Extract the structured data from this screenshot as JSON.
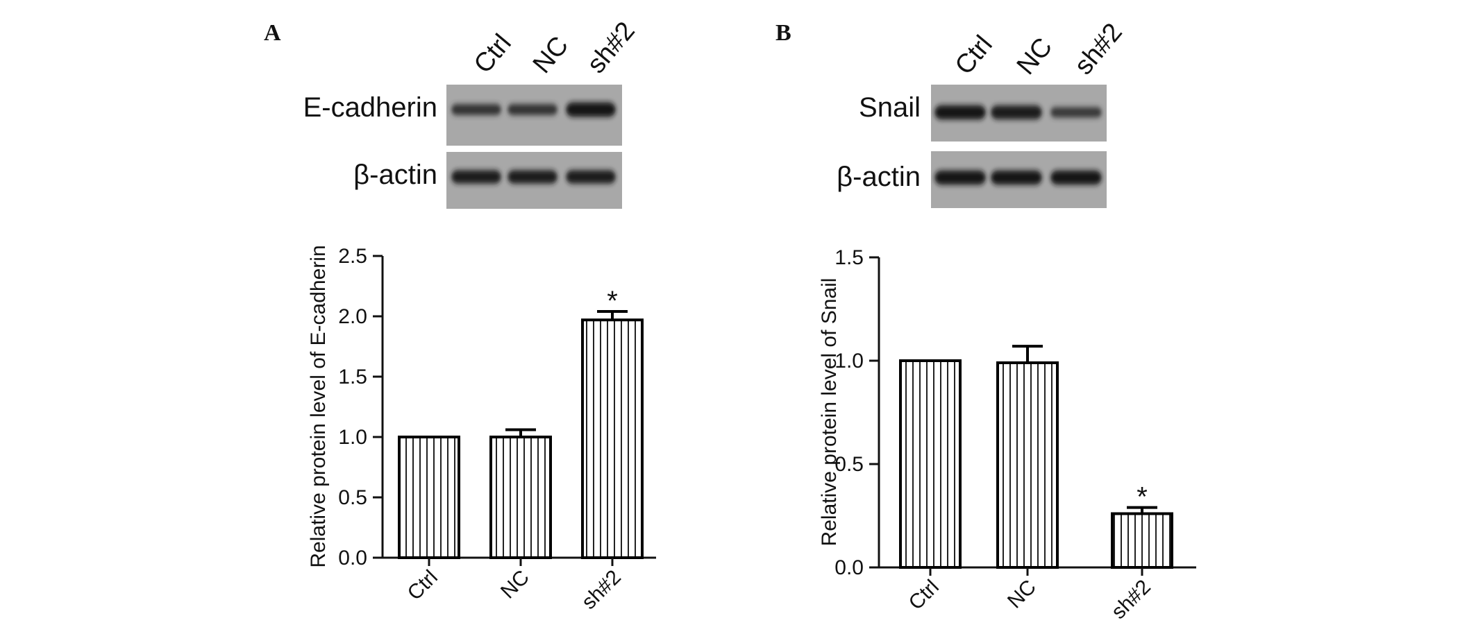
{
  "panels": [
    {
      "letter": "A",
      "blot": {
        "lanes": [
          "Ctrl",
          "NC",
          "sh#2"
        ],
        "rows": [
          {
            "label": "E-cadherin",
            "intensity": [
              0.55,
              0.55,
              0.92
            ]
          },
          {
            "label": "β-actin",
            "intensity": [
              0.8,
              0.8,
              0.8
            ]
          }
        ]
      }
    },
    {
      "letter": "B",
      "blot": {
        "lanes": [
          "Ctrl",
          "NC",
          "sh#2"
        ],
        "rows": [
          {
            "label": "Snail",
            "intensity": [
              0.9,
              0.85,
              0.5
            ]
          },
          {
            "label": "β-actin",
            "intensity": [
              0.9,
              0.9,
              0.9
            ]
          }
        ]
      }
    }
  ],
  "chart_data": [
    {
      "type": "bar",
      "categories": [
        "Ctrl",
        "NC",
        "sh#2"
      ],
      "values": [
        1.0,
        1.0,
        1.97
      ],
      "errors": [
        0,
        0.06,
        0.07
      ],
      "significance": [
        "",
        "",
        "*"
      ],
      "ylabel": "Relative protein level of E-cadherin",
      "ylim": [
        0,
        2.5
      ],
      "yticks": [
        "0.0",
        "0.5",
        "1.0",
        "1.5",
        "2.0",
        "2.5"
      ],
      "ytick_values": [
        0,
        0.5,
        1.0,
        1.5,
        2.0,
        2.5
      ],
      "grid": false,
      "bar_fill": "vertical-stripes",
      "color": "#000000"
    },
    {
      "type": "bar",
      "categories": [
        "Ctrl",
        "NC",
        "sh#2"
      ],
      "values": [
        1.0,
        0.99,
        0.26
      ],
      "errors": [
        0,
        0.08,
        0.03
      ],
      "significance": [
        "",
        "",
        "*"
      ],
      "ylabel": "Relative protein level of Snail",
      "ylim": [
        0,
        1.5
      ],
      "yticks": [
        "0.0",
        "0.5",
        "1.0",
        "1.5"
      ],
      "ytick_values": [
        0,
        0.5,
        1.0,
        1.5
      ],
      "grid": false,
      "bar_fill": "vertical-stripes",
      "color": "#000000"
    }
  ]
}
